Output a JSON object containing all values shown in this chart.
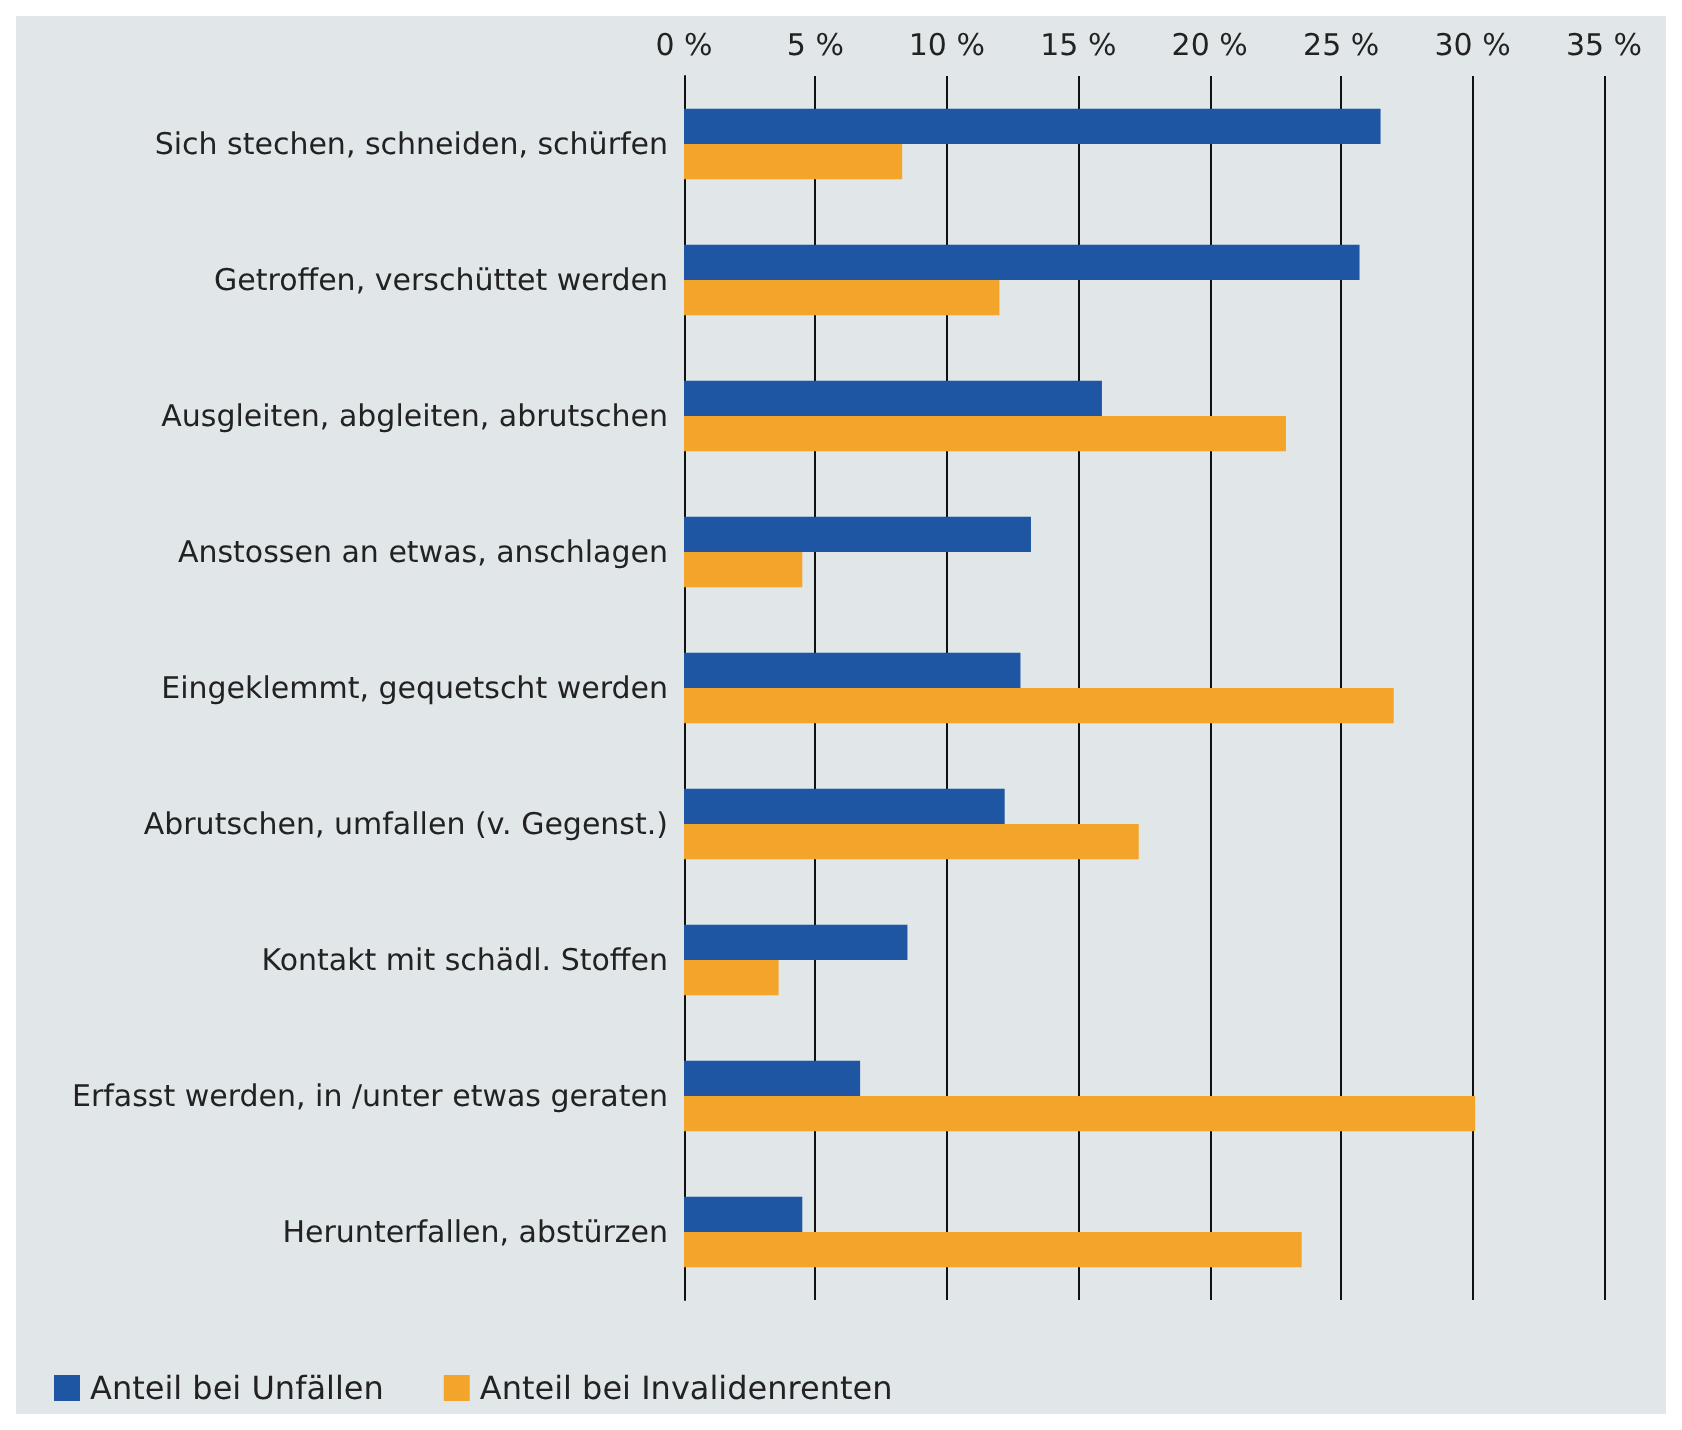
{
  "chart_data": {
    "type": "bar",
    "orientation": "horizontal",
    "categories": [
      "Sich stechen, schneiden, schürfen",
      "Getroffen, verschüttet werden",
      "Ausgleiten, abgleiten, abrutschen",
      "Anstossen an etwas, anschlagen",
      "Eingeklemmt, gequetscht werden",
      "Abrutschen, umfallen (v. Gegenst.)",
      "Kontakt mit schädl. Stoffen",
      "Erfasst werden, in /unter etwas geraten",
      "Herunterfallen, abstürzen"
    ],
    "series": [
      {
        "name": "Anteil bei Unfällen",
        "color": "#1f56a3",
        "values": [
          26.5,
          25.7,
          15.9,
          13.2,
          12.8,
          12.2,
          8.5,
          6.7,
          4.5
        ]
      },
      {
        "name": "Anteil bei Invalidenrenten",
        "color": "#f2a52a",
        "values": [
          8.3,
          12.0,
          22.9,
          4.5,
          27.0,
          17.3,
          3.6,
          30.1,
          23.5
        ]
      }
    ],
    "xlim": [
      0,
      35
    ],
    "xticks": [
      {
        "value": 0,
        "label": "0 %"
      },
      {
        "value": 5,
        "label": "5 %"
      },
      {
        "value": 10,
        "label": "10 %"
      },
      {
        "value": 15,
        "label": "15 %"
      },
      {
        "value": 20,
        "label": "20 %"
      },
      {
        "value": 25,
        "label": "25 %"
      },
      {
        "value": 30,
        "label": "30 %"
      },
      {
        "value": 35,
        "label": "35 %"
      }
    ],
    "grid": "x",
    "legend": "bottom left"
  }
}
